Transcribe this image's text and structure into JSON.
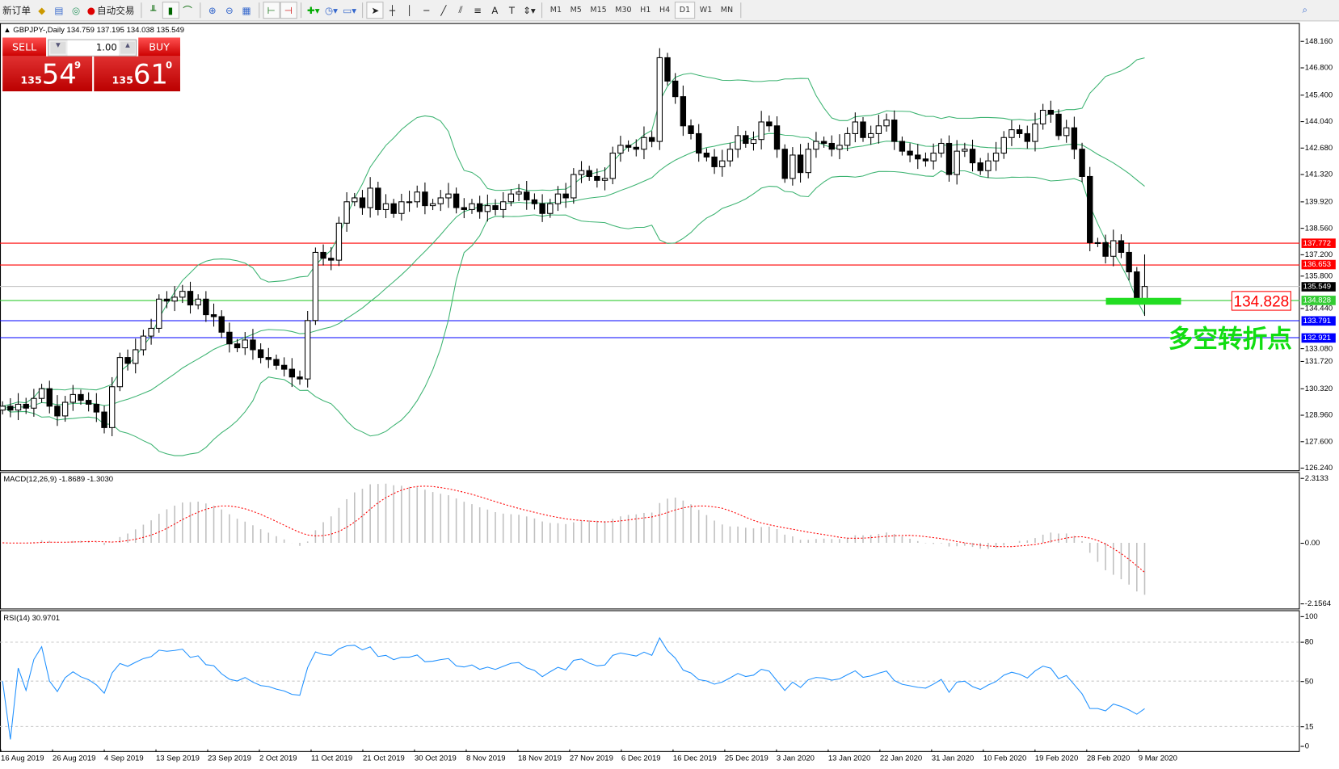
{
  "toolbar": {
    "new_order": "新订单",
    "auto_trading": "自动交易",
    "timeframes": [
      "M1",
      "M5",
      "M15",
      "M30",
      "H1",
      "H4",
      "D1",
      "W1",
      "MN"
    ],
    "active_timeframe": "D1",
    "icons": [
      "market-watch-icon",
      "navigator-icon",
      "signals-icon",
      "auto-trading-icon",
      "bar-chart-icon",
      "candlestick-icon",
      "line-chart-icon",
      "zoom-in-icon",
      "zoom-out-icon",
      "tile-windows-icon",
      "chart-shift-icon",
      "autoscroll-icon",
      "indicators-icon",
      "periods-icon",
      "templates-icon",
      "cursor-icon",
      "crosshair-icon",
      "vertical-line-icon",
      "horizontal-line-icon",
      "trendline-icon",
      "equidistant-channel-icon",
      "fibonacci-icon",
      "text-icon",
      "text-label-icon",
      "arrows-icon",
      "search-icon"
    ]
  },
  "chart": {
    "header": "GBPJPY-,Daily  134.759 137.195 134.038 135.549",
    "trade_panel": {
      "sell_label": "SELL",
      "buy_label": "BUY",
      "lot": "1.00",
      "sell_big": "135",
      "sell_main": "54",
      "sell_sup": "9",
      "buy_big": "135",
      "buy_main": "61",
      "buy_sup": "0"
    },
    "price_axis": [
      "148.160",
      "146.800",
      "145.400",
      "144.040",
      "142.680",
      "141.320",
      "139.920",
      "138.560",
      "137.200",
      "135.800",
      "134.440",
      "133.080",
      "131.720",
      "130.320",
      "128.960",
      "127.600",
      "126.240"
    ],
    "levels": [
      {
        "value": "137.772",
        "color": "#ff0000"
      },
      {
        "value": "136.653",
        "color": "#ff0000"
      },
      {
        "value": "135.549",
        "color": "#000000",
        "line": "#c0c0c0"
      },
      {
        "value": "134.828",
        "color": "#33cc33"
      },
      {
        "value": "133.791",
        "color": "#0000ff"
      },
      {
        "value": "132.921",
        "color": "#0000ff"
      }
    ],
    "annotation_price": "134.828",
    "annotation_text": "多空转折点",
    "dates": [
      "16 Aug 2019",
      "26 Aug 2019",
      "4 Sep 2019",
      "13 Sep 2019",
      "23 Sep 2019",
      "2 Oct 2019",
      "11 Oct 2019",
      "21 Oct 2019",
      "30 Oct 2019",
      "8 Nov 2019",
      "18 Nov 2019",
      "27 Nov 2019",
      "6 Dec 2019",
      "16 Dec 2019",
      "25 Dec 2019",
      "3 Jan 2020",
      "13 Jan 2020",
      "22 Jan 2020",
      "31 Jan 2020",
      "10 Feb 2020",
      "19 Feb 2020",
      "28 Feb 2020",
      "9 Mar 2020"
    ]
  },
  "macd": {
    "label": "MACD(12,26,9) -1.8689 -1.3030",
    "axis": [
      "2.3133",
      "0.00",
      "-2.1564"
    ]
  },
  "rsi": {
    "label": "RSI(14) 30.9701",
    "axis": [
      "100",
      "80",
      "50",
      "15",
      "0"
    ]
  },
  "chart_data": {
    "type": "candlestick",
    "symbol": "GBPJPY",
    "timeframe": "Daily",
    "ylim": [
      126.24,
      148.16
    ],
    "last_ohlc": [
      134.759,
      137.195,
      134.038,
      135.549
    ],
    "closes": [
      129.4,
      129.2,
      129.5,
      129.3,
      129.8,
      130.3,
      129.4,
      128.9,
      129.6,
      130.0,
      129.7,
      129.5,
      129.1,
      128.3,
      130.4,
      131.9,
      131.6,
      132.3,
      133.0,
      133.4,
      134.9,
      134.8,
      135.0,
      135.3,
      134.6,
      134.9,
      134.1,
      134.0,
      133.2,
      132.6,
      132.4,
      132.8,
      132.3,
      131.9,
      131.8,
      131.5,
      131.3,
      130.9,
      130.8,
      133.8,
      137.3,
      137.0,
      136.9,
      138.8,
      139.9,
      140.1,
      139.6,
      140.6,
      139.5,
      139.8,
      139.3,
      139.9,
      139.9,
      140.4,
      139.7,
      139.8,
      140.1,
      140.3,
      139.6,
      139.5,
      139.8,
      139.4,
      139.7,
      139.5,
      139.9,
      140.3,
      140.4,
      140.0,
      139.8,
      139.3,
      139.8,
      140.3,
      140.1,
      141.3,
      141.5,
      141.2,
      141.0,
      141.1,
      142.4,
      142.8,
      142.7,
      142.6,
      143.2,
      143.0,
      147.3,
      146.1,
      145.3,
      143.8,
      143.4,
      142.4,
      142.2,
      141.7,
      142.0,
      142.6,
      143.3,
      142.9,
      143.1,
      144.0,
      143.8,
      142.6,
      141.1,
      142.3,
      141.4,
      142.6,
      143.0,
      142.9,
      142.6,
      142.8,
      143.4,
      144.0,
      143.2,
      143.4,
      143.8,
      144.1,
      143.0,
      142.5,
      142.3,
      142.1,
      142.0,
      142.4,
      142.9,
      141.3,
      142.5,
      142.6,
      141.9,
      141.5,
      142.0,
      142.4,
      143.2,
      143.6,
      143.4,
      143.0,
      143.9,
      144.6,
      144.4,
      143.3,
      143.7,
      142.6,
      141.2,
      137.8,
      137.8,
      137.1,
      137.9,
      137.3,
      136.3,
      134.9,
      135.549
    ],
    "indicators": [
      "Bollinger Bands (20,2)",
      "MACD(12,26,9)",
      "RSI(14)"
    ],
    "colors": {
      "bands": "#3cb371",
      "macd_hist": "#c0c0c0",
      "macd_signal": "#ff0000",
      "rsi": "#1e90ff"
    }
  }
}
